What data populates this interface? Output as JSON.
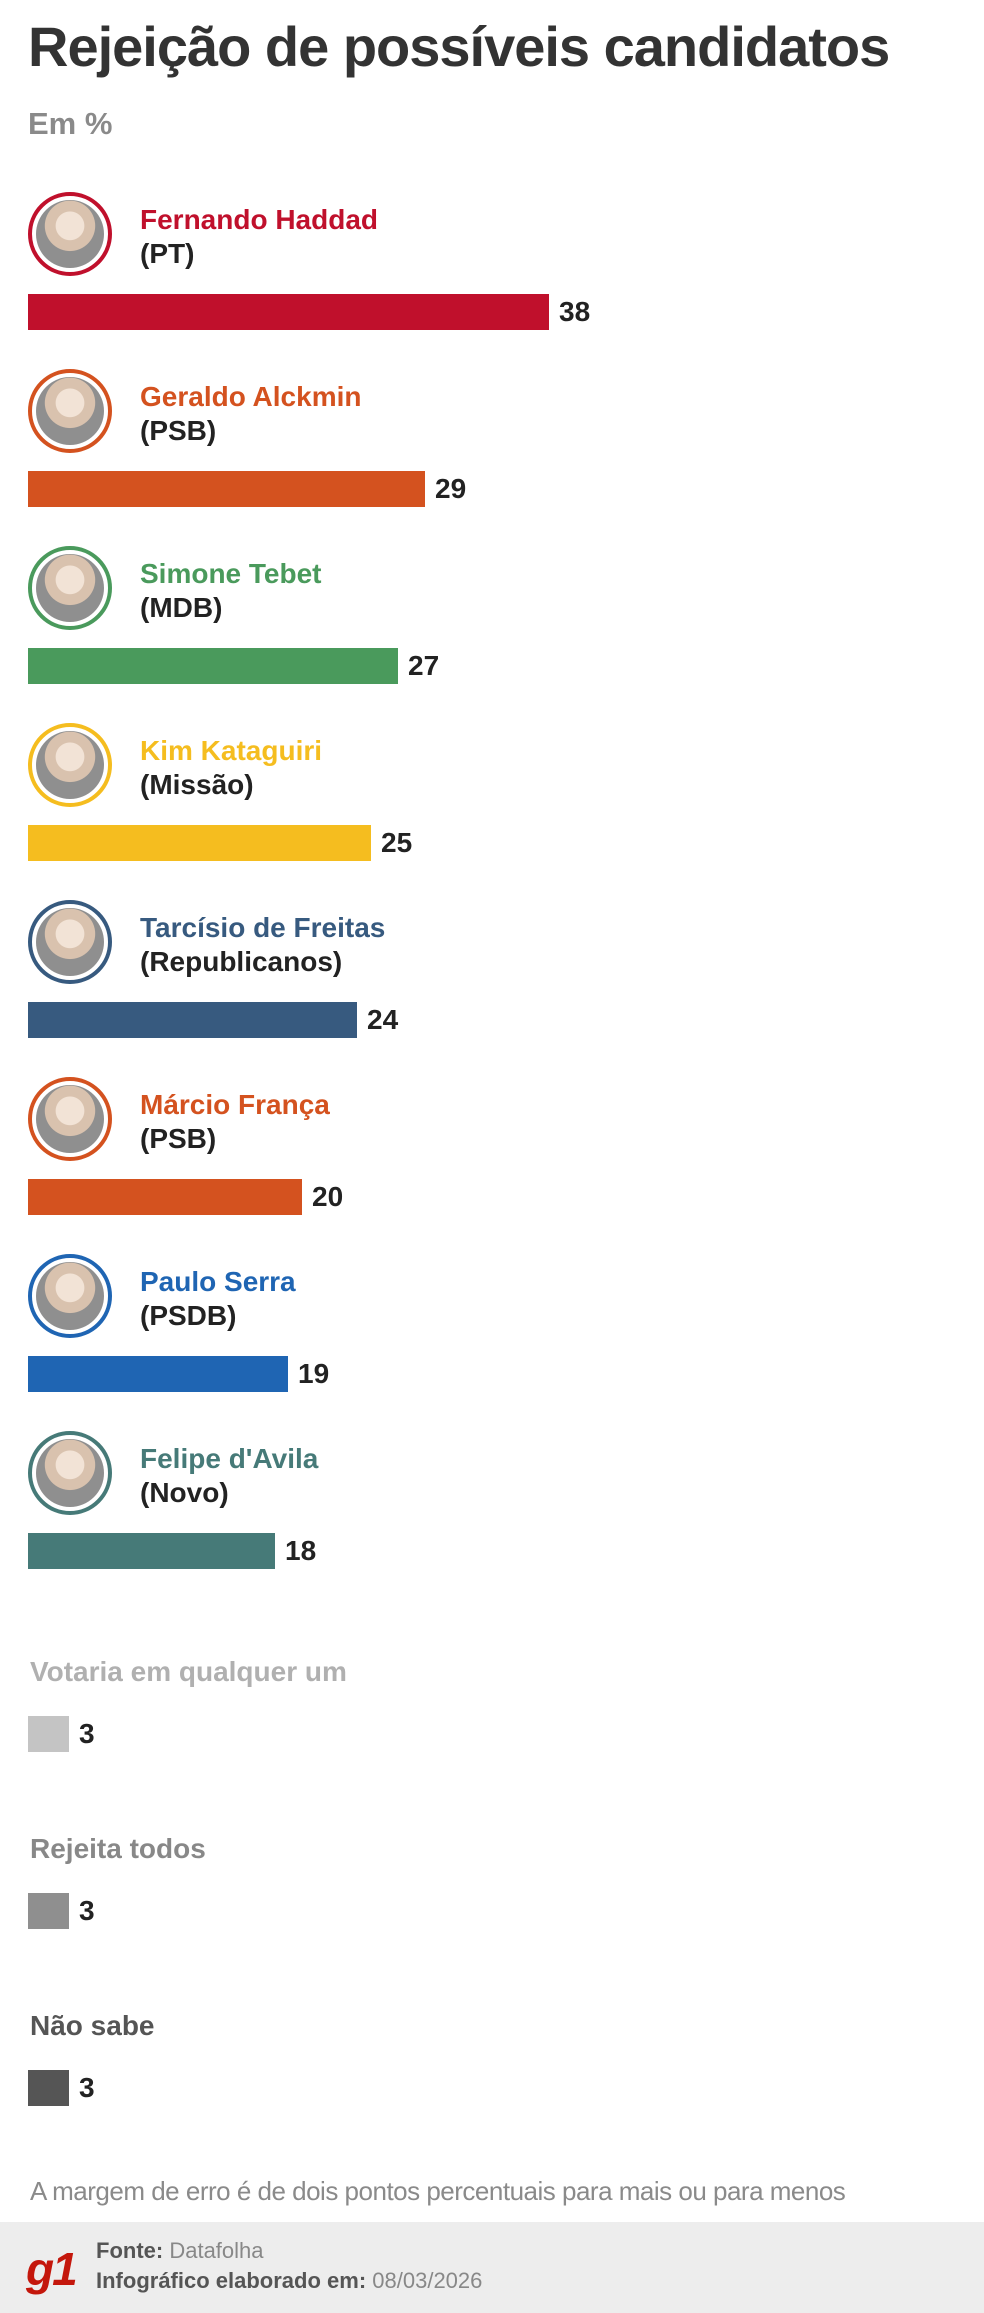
{
  "title": "Rejeição de possíveis candidatos",
  "subtitle": "Em %",
  "chart_data": {
    "type": "bar",
    "orientation": "horizontal",
    "unit": "%",
    "candidates": [
      {
        "name": "Fernando Haddad",
        "party": "(PT)",
        "value": 38,
        "color": "#c0102c"
      },
      {
        "name": "Geraldo Alckmin",
        "party": "(PSB)",
        "value": 29,
        "color": "#d4521f"
      },
      {
        "name": "Simone Tebet",
        "party": "(MDB)",
        "value": 27,
        "color": "#4a9a5c"
      },
      {
        "name": "Kim Kataguiri",
        "party": "(Missão)",
        "value": 25,
        "color": "#f5bd1f"
      },
      {
        "name": "Tarcísio de Freitas",
        "party": "(Republicanos)",
        "value": 24,
        "color": "#375a7f"
      },
      {
        "name": "Márcio França",
        "party": "(PSB)",
        "value": 20,
        "color": "#d4521f"
      },
      {
        "name": "Paulo Serra",
        "party": "(PSDB)",
        "value": 19,
        "color": "#1f65b3"
      },
      {
        "name": "Felipe d'Avila",
        "party": "(Novo)",
        "value": 18,
        "color": "#467a78"
      }
    ],
    "other": [
      {
        "label": "Votaria em qualquer um",
        "value": 3,
        "color": "#c4c4c4",
        "label_color": "#b0b0b0"
      },
      {
        "label": "Rejeita todos",
        "value": 3,
        "color": "#8f8f8f",
        "label_color": "#888888"
      },
      {
        "label": "Não sabe",
        "value": 3,
        "color": "#555555",
        "label_color": "#555555"
      }
    ]
  },
  "note": "A margem de erro é de dois pontos percentuais para mais ou para menos",
  "footer": {
    "logo": "g1",
    "source_label": "Fonte:",
    "source_value": "Datafolha",
    "date_label": "Infográfico elaborado em:",
    "date_value": "08/03/2026"
  }
}
